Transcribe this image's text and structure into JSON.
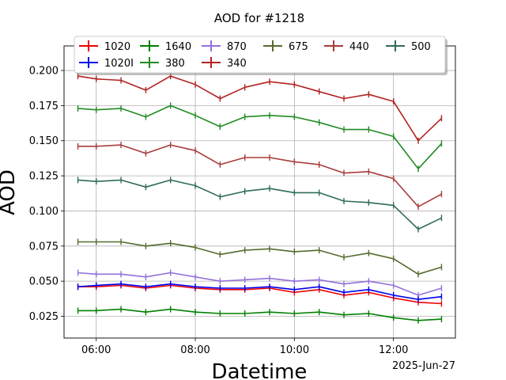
{
  "chart_data": {
    "type": "line",
    "title": "AOD for #1218",
    "xlabel": "Datetime",
    "ylabel": "AOD",
    "date_label": "2025-Jun-27",
    "x_unit": "time of day (hours)",
    "xlim": [
      5.35,
      13.25
    ],
    "ylim": [
      0.0095,
      0.2175
    ],
    "x_ticks": [
      {
        "value": 6,
        "label": "06:00"
      },
      {
        "value": 8,
        "label": "08:00"
      },
      {
        "value": 10,
        "label": "10:00"
      },
      {
        "value": 12,
        "label": "12:00"
      }
    ],
    "y_ticks": [
      {
        "value": 0.025,
        "label": "0.025"
      },
      {
        "value": 0.05,
        "label": "0.050"
      },
      {
        "value": 0.075,
        "label": "0.075"
      },
      {
        "value": 0.1,
        "label": "0.100"
      },
      {
        "value": 0.125,
        "label": "0.125"
      },
      {
        "value": 0.15,
        "label": "0.150"
      },
      {
        "value": 0.175,
        "label": "0.175"
      },
      {
        "value": 0.2,
        "label": "0.200"
      }
    ],
    "grid": true,
    "legend_position": "top-center",
    "legend_columns": 6,
    "x": [
      5.63,
      6.0,
      6.5,
      7.0,
      7.5,
      8.0,
      8.5,
      9.0,
      9.5,
      10.0,
      10.5,
      11.0,
      11.5,
      12.0,
      12.5,
      12.97
    ],
    "series": [
      {
        "name": "1020",
        "color": "#ee0000",
        "values": [
          0.046,
          0.046,
          0.047,
          0.045,
          0.047,
          0.045,
          0.044,
          0.044,
          0.045,
          0.042,
          0.044,
          0.04,
          0.042,
          0.038,
          0.035,
          0.034
        ]
      },
      {
        "name": "1640",
        "color": "#008000",
        "values": [
          0.029,
          0.029,
          0.03,
          0.028,
          0.03,
          0.028,
          0.027,
          0.027,
          0.028,
          0.027,
          0.028,
          0.026,
          0.027,
          0.024,
          0.022,
          0.023
        ]
      },
      {
        "name": "870",
        "color": "#9370db",
        "values": [
          0.056,
          0.055,
          0.055,
          0.053,
          0.056,
          0.053,
          0.05,
          0.051,
          0.052,
          0.05,
          0.051,
          0.048,
          0.05,
          0.047,
          0.04,
          0.045
        ]
      },
      {
        "name": "675",
        "color": "#556b2f",
        "values": [
          0.078,
          0.078,
          0.078,
          0.075,
          0.077,
          0.074,
          0.069,
          0.072,
          0.073,
          0.071,
          0.072,
          0.067,
          0.07,
          0.066,
          0.055,
          0.06
        ]
      },
      {
        "name": "440",
        "color": "#a83c3c",
        "values": [
          0.146,
          0.146,
          0.147,
          0.141,
          0.147,
          0.143,
          0.133,
          0.138,
          0.138,
          0.135,
          0.133,
          0.127,
          0.128,
          0.123,
          0.103,
          0.112
        ]
      },
      {
        "name": "500",
        "color": "#2f6b5a",
        "values": [
          0.122,
          0.121,
          0.122,
          0.117,
          0.122,
          0.118,
          0.11,
          0.114,
          0.116,
          0.113,
          0.113,
          0.107,
          0.106,
          0.104,
          0.087,
          0.095
        ]
      },
      {
        "name": "1020I",
        "color": "#0000ee",
        "values": [
          0.046,
          0.047,
          0.048,
          0.046,
          0.048,
          0.046,
          0.045,
          0.045,
          0.046,
          0.044,
          0.046,
          0.042,
          0.044,
          0.04,
          0.037,
          0.039
        ]
      },
      {
        "name": "380",
        "color": "#228b22",
        "values": [
          0.173,
          0.172,
          0.173,
          0.167,
          0.175,
          0.168,
          0.16,
          0.167,
          0.168,
          0.167,
          0.163,
          0.158,
          0.158,
          0.153,
          0.13,
          0.148
        ]
      },
      {
        "name": "340",
        "color": "#b22222",
        "values": [
          0.196,
          0.194,
          0.193,
          0.186,
          0.196,
          0.19,
          0.18,
          0.188,
          0.192,
          0.19,
          0.185,
          0.18,
          0.183,
          0.178,
          0.15,
          0.166
        ]
      }
    ]
  }
}
